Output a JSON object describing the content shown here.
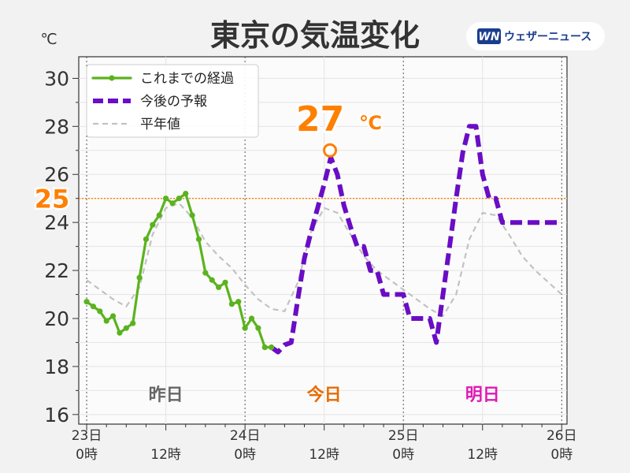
{
  "title": "東京の気温変化",
  "logo": {
    "mark": "WN",
    "text": "ウェザーニュース"
  },
  "chart_data": {
    "type": "line",
    "unit": "℃",
    "ylim": [
      15.6,
      30.9
    ],
    "xlim": [
      -1.2,
      72.8
    ],
    "yticks": [
      16,
      18,
      20,
      22,
      24,
      26,
      28,
      30
    ],
    "xticks": [
      {
        "x": 0,
        "line1": "23日",
        "line2": "0時"
      },
      {
        "x": 12,
        "line1": "",
        "line2": "12時"
      },
      {
        "x": 24,
        "line1": "24日",
        "line2": "0時"
      },
      {
        "x": 36,
        "line1": "",
        "line2": "12時"
      },
      {
        "x": 48,
        "line1": "25日",
        "line2": "0時"
      },
      {
        "x": 60,
        "line1": "",
        "line2": "12時"
      },
      {
        "x": 72,
        "line1": "26日",
        "line2": "0時"
      }
    ],
    "grid": true,
    "legend_position": "top-left",
    "series": [
      {
        "name": "これまでの経過",
        "style": "observed",
        "color": "#5ab31e",
        "x": [
          0,
          1,
          2,
          3,
          4,
          5,
          6,
          7,
          8,
          9,
          10,
          11,
          12,
          13,
          14,
          15,
          16,
          17,
          18,
          19,
          20,
          21,
          22,
          23,
          24,
          25,
          26,
          27,
          28
        ],
        "values": [
          20.7,
          20.5,
          20.3,
          19.9,
          20.1,
          19.4,
          19.6,
          19.8,
          21.7,
          23.3,
          23.9,
          24.3,
          25.0,
          24.8,
          25.0,
          25.2,
          24.3,
          23.3,
          21.9,
          21.6,
          21.3,
          21.5,
          20.6,
          20.7,
          19.6,
          20.0,
          19.6,
          18.8,
          18.8
        ]
      },
      {
        "name": "今後の予報",
        "style": "forecast",
        "color": "#6a0dc4",
        "x": [
          28,
          29,
          30,
          31,
          32,
          33,
          34,
          35,
          36,
          37,
          38,
          39,
          40,
          41,
          42,
          43,
          44,
          45,
          46,
          47,
          48,
          49,
          50,
          51,
          52,
          53,
          54,
          55,
          56,
          57,
          58,
          59,
          60,
          61,
          62,
          63,
          64,
          65,
          66,
          67,
          68,
          69,
          70,
          71,
          72
        ],
        "values": [
          18.8,
          18.6,
          18.9,
          19.0,
          20.8,
          22.5,
          23.6,
          24.6,
          25.6,
          26.7,
          26.0,
          24.7,
          23.8,
          23.0,
          23.0,
          22.0,
          22.0,
          21.0,
          21.0,
          21.0,
          21.0,
          20.0,
          20.0,
          20.0,
          20.0,
          19.0,
          21.0,
          23.0,
          25.0,
          26.9,
          28.0,
          28.0,
          26.0,
          25.0,
          25.0,
          24.0,
          24.0,
          24.0,
          24.0,
          24.0,
          24.0,
          24.0,
          24.0,
          24.0,
          24.0
        ]
      },
      {
        "name": "平年値",
        "style": "normal",
        "color": "#c2c2c2",
        "x": [
          0,
          2,
          4,
          6,
          8,
          10,
          12,
          14,
          16,
          18,
          20,
          22,
          24,
          26,
          28,
          30,
          32,
          34,
          36,
          38,
          40,
          42,
          44,
          46,
          48,
          50,
          52,
          54,
          56,
          58,
          60,
          62,
          64,
          66,
          68,
          70,
          72
        ],
        "values": [
          21.6,
          21.2,
          20.8,
          20.5,
          21.3,
          23.5,
          24.6,
          24.8,
          24.2,
          23.2,
          22.6,
          22.1,
          21.4,
          20.8,
          20.4,
          20.3,
          21.5,
          23.6,
          24.6,
          24.4,
          23.5,
          22.6,
          22.0,
          21.6,
          21.2,
          20.8,
          20.4,
          20.1,
          21.0,
          23.3,
          24.4,
          24.3,
          23.5,
          22.6,
          22.0,
          21.5,
          21.0
        ]
      }
    ],
    "reference_line": {
      "y": 25,
      "label": "25",
      "color": "#ff7f00"
    },
    "peak_annotation": {
      "x": 37,
      "y": 27.0,
      "value": "27",
      "unit": "℃",
      "color": "#ff7f00"
    },
    "day_labels": [
      {
        "x": 12,
        "label": "昨日",
        "color": "#666666"
      },
      {
        "x": 36,
        "label": "今日",
        "color": "#e86b00"
      },
      {
        "x": 60,
        "label": "明日",
        "color": "#e01ab3"
      }
    ]
  }
}
